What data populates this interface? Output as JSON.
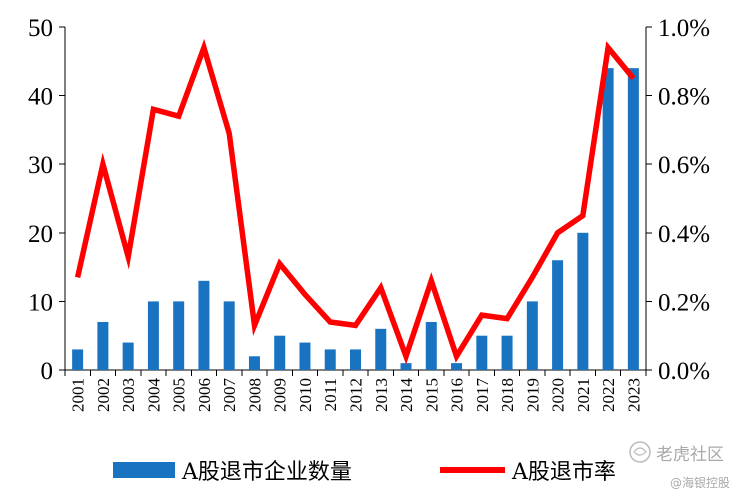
{
  "chart_data": {
    "type": "bar+line",
    "categories": [
      "2001",
      "2002",
      "2003",
      "2004",
      "2005",
      "2006",
      "2007",
      "2008",
      "2009",
      "2010",
      "2011",
      "2012",
      "2013",
      "2014",
      "2015",
      "2016",
      "2017",
      "2018",
      "2019",
      "2020",
      "2021",
      "2022",
      "2023"
    ],
    "series": [
      {
        "name": "A股退市企业数量",
        "type": "bar",
        "axis": "left",
        "color": "#1a73c1",
        "values": [
          3,
          7,
          4,
          10,
          10,
          13,
          10,
          2,
          5,
          4,
          3,
          3,
          6,
          1,
          7,
          1,
          5,
          5,
          10,
          16,
          20,
          44,
          44
        ]
      },
      {
        "name": "A股退市率",
        "type": "line",
        "axis": "right",
        "color": "#ff0000",
        "values": [
          0.27,
          0.6,
          0.33,
          0.76,
          0.74,
          0.94,
          0.69,
          0.13,
          0.31,
          0.22,
          0.14,
          0.13,
          0.24,
          0.04,
          0.26,
          0.04,
          0.16,
          0.15,
          0.27,
          0.4,
          0.45,
          0.94,
          0.85
        ]
      }
    ],
    "ylim_left": [
      0,
      50
    ],
    "yticks_left": [
      "0",
      "10",
      "20",
      "30",
      "40",
      "50"
    ],
    "ylim_right": [
      0,
      1.0
    ],
    "yticks_right": [
      "0.0%",
      "0.2%",
      "0.4%",
      "0.6%",
      "0.8%",
      "1.0%"
    ],
    "legend_position": "bottom",
    "grid": false
  },
  "watermark": {
    "line1": "老虎社区",
    "line2": "@海银控股"
  }
}
